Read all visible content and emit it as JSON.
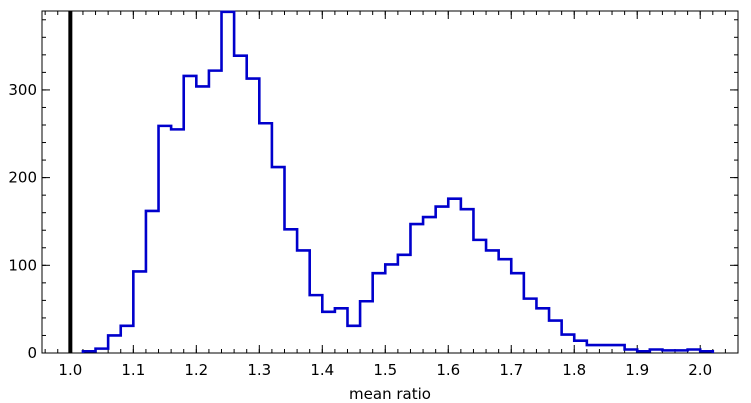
{
  "chart_data": {
    "type": "histogram",
    "title": "",
    "xlabel": "mean ratio",
    "ylabel": "",
    "xlim": [
      0.955,
      2.06
    ],
    "ylim": [
      0,
      390
    ],
    "x_ticks": [
      1.0,
      1.1,
      1.2,
      1.3,
      1.4,
      1.5,
      1.6,
      1.7,
      1.8,
      1.9,
      2.0
    ],
    "x_tick_labels": [
      "1.0",
      "1.1",
      "1.2",
      "1.3",
      "1.4",
      "1.5",
      "1.6",
      "1.7",
      "1.8",
      "1.9",
      "2.0"
    ],
    "y_ticks": [
      0,
      100,
      200,
      300
    ],
    "y_tick_labels": [
      "0",
      "100",
      "200",
      "300"
    ],
    "reference_line_x": 1.0,
    "bin_width": 0.02,
    "bin_start": 1.02,
    "counts": [
      2,
      5,
      20,
      31,
      93,
      162,
      259,
      255,
      316,
      304,
      322,
      389,
      339,
      313,
      262,
      212,
      141,
      117,
      66,
      47,
      51,
      31,
      59,
      91,
      101,
      112,
      147,
      155,
      167,
      176,
      164,
      129,
      117,
      107,
      91,
      62,
      51,
      37,
      21,
      14,
      9,
      9,
      9,
      4,
      2,
      4,
      3,
      3,
      4,
      2
    ],
    "colors": {
      "series": "#0000cc",
      "reference_line": "#000000",
      "axes": "#000000"
    }
  }
}
